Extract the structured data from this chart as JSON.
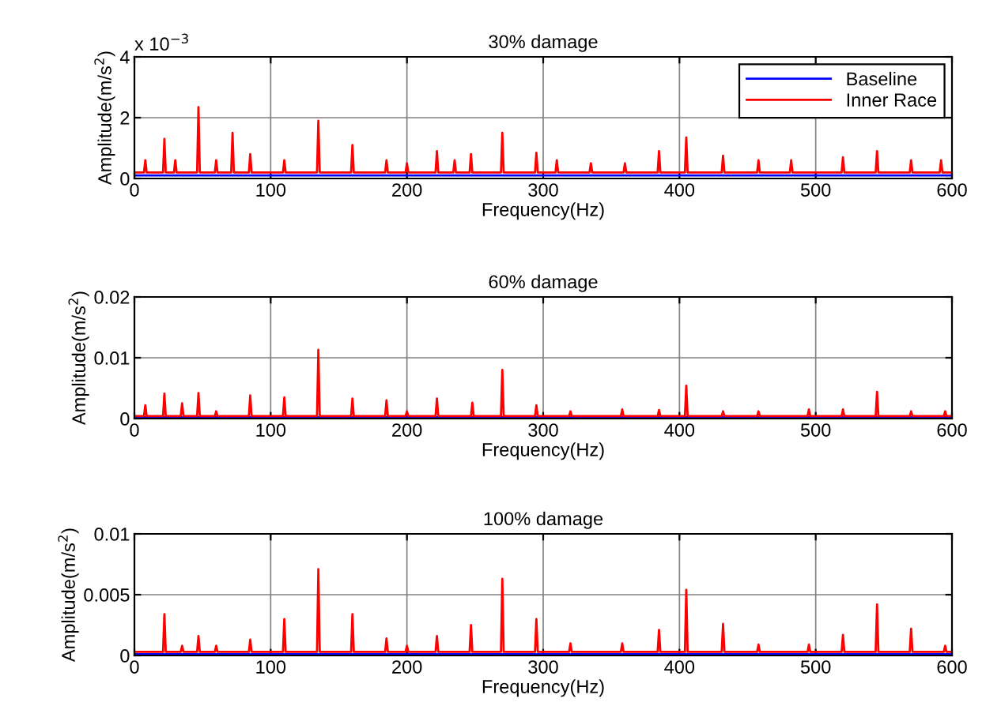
{
  "chart_data": [
    {
      "type": "line",
      "title": "30% damage",
      "xlabel": "Frequency(Hz)",
      "ylabel": "Amplitude(m/s$^{2}$)",
      "xlim": [
        0,
        600
      ],
      "xticks": [
        0,
        100,
        200,
        300,
        400,
        500,
        600
      ],
      "ylim": [
        0,
        4
      ],
      "yticks": [
        0,
        2,
        4
      ],
      "annotations": [
        "x 10$^{−3}$"
      ],
      "grid": true,
      "legend": "top right",
      "series": [
        {
          "name": "Baseline",
          "color": "#0000ff",
          "x": [
            0,
            100,
            200,
            300,
            400,
            500,
            600
          ],
          "values": [
            0.1,
            0.1,
            0.1,
            0.1,
            0.1,
            0.1,
            0.1
          ]
        },
        {
          "name": "Inner Race",
          "color": "#ff0000",
          "x": [
            0,
            7,
            8,
            9,
            21,
            22,
            23,
            29,
            30,
            31,
            46,
            47,
            48,
            59,
            60,
            61,
            71,
            72,
            73,
            84,
            85,
            86,
            109,
            110,
            111,
            134,
            135,
            136,
            159,
            160,
            161,
            184,
            185,
            186,
            199,
            200,
            201,
            221,
            222,
            223,
            234,
            235,
            236,
            246,
            247,
            248,
            269,
            270,
            271,
            294,
            295,
            296,
            309,
            310,
            311,
            334,
            335,
            336,
            359,
            360,
            361,
            384,
            385,
            386,
            404,
            405,
            406,
            431,
            432,
            433,
            457,
            458,
            459,
            481,
            482,
            483,
            519,
            520,
            521,
            544,
            545,
            546,
            569,
            570,
            571,
            591,
            592,
            593,
            600
          ],
          "values": [
            0.2,
            0.2,
            0.6,
            0.2,
            0.2,
            1.3,
            0.2,
            0.2,
            0.6,
            0.2,
            0.2,
            2.35,
            0.2,
            0.2,
            0.6,
            0.2,
            0.2,
            1.5,
            0.2,
            0.2,
            0.8,
            0.2,
            0.2,
            0.6,
            0.2,
            0.2,
            1.9,
            0.2,
            0.2,
            1.1,
            0.2,
            0.2,
            0.6,
            0.2,
            0.2,
            0.5,
            0.2,
            0.2,
            0.9,
            0.2,
            0.2,
            0.6,
            0.2,
            0.2,
            0.8,
            0.2,
            0.2,
            1.5,
            0.2,
            0.2,
            0.85,
            0.2,
            0.2,
            0.6,
            0.2,
            0.2,
            0.5,
            0.2,
            0.2,
            0.5,
            0.2,
            0.2,
            0.9,
            0.2,
            0.2,
            1.35,
            0.2,
            0.2,
            0.75,
            0.2,
            0.2,
            0.6,
            0.2,
            0.2,
            0.6,
            0.2,
            0.2,
            0.7,
            0.2,
            0.2,
            0.9,
            0.2,
            0.2,
            0.6,
            0.2,
            0.2,
            0.6,
            0.2,
            0.2
          ]
        }
      ]
    },
    {
      "type": "line",
      "title": "60% damage",
      "xlabel": "Frequency(Hz)",
      "ylabel": "Amplitude(m/s$^{2}$)",
      "xlim": [
        0,
        600
      ],
      "xticks": [
        0,
        100,
        200,
        300,
        400,
        500,
        600
      ],
      "ylim": [
        0,
        0.02
      ],
      "yticks": [
        0,
        0.01,
        0.02
      ],
      "grid": true,
      "series": [
        {
          "color": "#0000ff",
          "x": [
            0,
            100,
            200,
            300,
            400,
            500,
            600
          ],
          "values": [
            0.0002,
            0.0002,
            0.0002,
            0.0002,
            0.0002,
            0.0002,
            0.0002
          ]
        },
        {
          "color": "#ff0000",
          "x": [
            0,
            7,
            8,
            9,
            21,
            22,
            23,
            34,
            35,
            36,
            46,
            47,
            48,
            59,
            60,
            61,
            84,
            85,
            86,
            109,
            110,
            111,
            134,
            135,
            136,
            159,
            160,
            161,
            184,
            185,
            186,
            199,
            200,
            201,
            221,
            222,
            223,
            247,
            248,
            249,
            269,
            270,
            271,
            294,
            295,
            296,
            319,
            320,
            321,
            357,
            358,
            359,
            384,
            385,
            386,
            404,
            405,
            406,
            431,
            432,
            433,
            457,
            458,
            459,
            494,
            495,
            496,
            519,
            520,
            521,
            544,
            545,
            546,
            569,
            570,
            571,
            594,
            595,
            596,
            600
          ],
          "values": [
            0.0004,
            0.0004,
            0.0022,
            0.0004,
            0.0004,
            0.0041,
            0.0004,
            0.0004,
            0.0025,
            0.0004,
            0.0004,
            0.0042,
            0.0004,
            0.0004,
            0.0012,
            0.0004,
            0.0004,
            0.0038,
            0.0004,
            0.0004,
            0.0035,
            0.0004,
            0.0004,
            0.0113,
            0.0004,
            0.0004,
            0.0033,
            0.0004,
            0.0004,
            0.003,
            0.0004,
            0.0004,
            0.0012,
            0.0004,
            0.0004,
            0.0033,
            0.0004,
            0.0004,
            0.0026,
            0.0004,
            0.0004,
            0.008,
            0.0004,
            0.0004,
            0.0022,
            0.0004,
            0.0004,
            0.0012,
            0.0004,
            0.0004,
            0.0015,
            0.0004,
            0.0004,
            0.0014,
            0.0004,
            0.0004,
            0.0054,
            0.0004,
            0.0004,
            0.0012,
            0.0004,
            0.0004,
            0.0012,
            0.0004,
            0.0004,
            0.0015,
            0.0004,
            0.0004,
            0.0015,
            0.0004,
            0.0004,
            0.0044,
            0.0004,
            0.0004,
            0.0012,
            0.0004,
            0.0004,
            0.0012,
            0.0004,
            0.0004
          ]
        }
      ]
    },
    {
      "type": "line",
      "title": "100% damage",
      "xlabel": "Frequency(Hz)",
      "ylabel": "Amplitude(m/s$^{2}$)",
      "xlim": [
        0,
        600
      ],
      "xticks": [
        0,
        100,
        200,
        300,
        400,
        500,
        600
      ],
      "ylim": [
        0,
        0.01
      ],
      "yticks": [
        0,
        0.005,
        0.01
      ],
      "grid": true,
      "series": [
        {
          "color": "#0000ff",
          "x": [
            0,
            100,
            200,
            300,
            400,
            500,
            600
          ],
          "values": [
            0.0001,
            0.0001,
            0.0001,
            0.0001,
            0.0001,
            0.0001,
            0.0001
          ]
        },
        {
          "color": "#ff0000",
          "x": [
            0,
            21,
            22,
            23,
            34,
            35,
            36,
            46,
            47,
            48,
            59,
            60,
            61,
            84,
            85,
            86,
            109,
            110,
            111,
            134,
            135,
            136,
            159,
            160,
            161,
            184,
            185,
            186,
            199,
            200,
            201,
            221,
            222,
            223,
            246,
            247,
            248,
            269,
            270,
            271,
            294,
            295,
            296,
            319,
            320,
            321,
            357,
            358,
            359,
            384,
            385,
            386,
            404,
            405,
            406,
            431,
            432,
            433,
            457,
            458,
            459,
            494,
            495,
            496,
            519,
            520,
            521,
            544,
            545,
            546,
            569,
            570,
            571,
            594,
            595,
            596,
            600
          ],
          "values": [
            0.0003,
            0.0003,
            0.0034,
            0.0003,
            0.0003,
            0.0008,
            0.0003,
            0.0003,
            0.0016,
            0.0003,
            0.0003,
            0.0008,
            0.0003,
            0.0003,
            0.0013,
            0.0003,
            0.0003,
            0.003,
            0.0003,
            0.0003,
            0.0071,
            0.0003,
            0.0003,
            0.0034,
            0.0003,
            0.0003,
            0.0014,
            0.0003,
            0.0003,
            0.0008,
            0.0003,
            0.0003,
            0.0016,
            0.0003,
            0.0003,
            0.0025,
            0.0003,
            0.0003,
            0.0063,
            0.0003,
            0.0003,
            0.003,
            0.0003,
            0.0003,
            0.001,
            0.0003,
            0.0003,
            0.001,
            0.0003,
            0.0003,
            0.0021,
            0.0003,
            0.0003,
            0.0054,
            0.0003,
            0.0003,
            0.0026,
            0.0003,
            0.0003,
            0.0009,
            0.0003,
            0.0003,
            0.0009,
            0.0003,
            0.0003,
            0.0017,
            0.0003,
            0.0003,
            0.0042,
            0.0003,
            0.0003,
            0.0022,
            0.0003,
            0.0003,
            0.0008,
            0.0003,
            0.0003
          ]
        }
      ]
    }
  ]
}
